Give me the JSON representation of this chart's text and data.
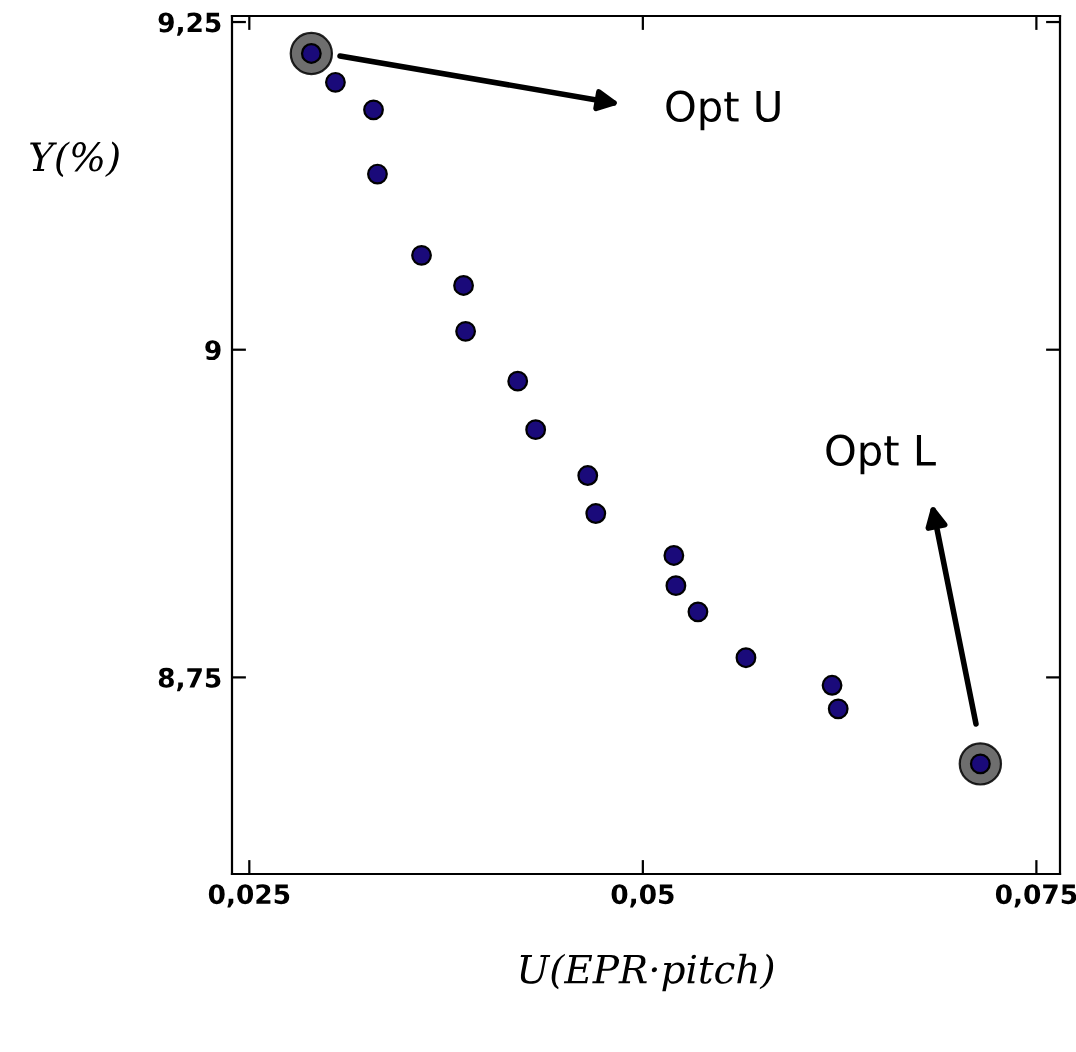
{
  "chart_data": {
    "type": "scatter",
    "xlabel": "U(EPR·pitch)",
    "ylabel": "Y(%)",
    "xlim": [
      0.0239,
      0.0765
    ],
    "ylim": [
      8.6,
      9.2546
    ],
    "xticks": [
      {
        "value": 0.025,
        "label": "0,025"
      },
      {
        "value": 0.05,
        "label": "0,05"
      },
      {
        "value": 0.075,
        "label": "0,075"
      }
    ],
    "yticks": [
      {
        "value": 8.75,
        "label": "8,75"
      },
      {
        "value": 9,
        "label": "9"
      },
      {
        "value": 9.25,
        "label": "9,25"
      }
    ],
    "grid": false,
    "legend": false,
    "marker": "circle",
    "series": [
      {
        "color": "#555555",
        "x": [
          0.02894,
          0.07144
        ],
        "values": [
          9.226,
          8.684
        ],
        "sizes": [
          1,
          1
        ]
      },
      {
        "color": "#1a0a7a",
        "x": [
          0.02894,
          0.03047,
          0.03289,
          0.03314,
          0.03594,
          0.03861,
          0.03874,
          0.04205,
          0.04319,
          0.0465,
          0.04701,
          0.05197,
          0.0521,
          0.0535,
          0.05655,
          0.06202,
          0.06241,
          0.07144
        ],
        "values": [
          9.226,
          9.204,
          9.183,
          9.134,
          9.072,
          9.049,
          9.014,
          8.976,
          8.939,
          8.904,
          8.875,
          8.843,
          8.82,
          8.8,
          8.765,
          8.744,
          8.726,
          8.684
        ]
      }
    ],
    "annotations": [
      "Opt U",
      "Opt L"
    ]
  }
}
